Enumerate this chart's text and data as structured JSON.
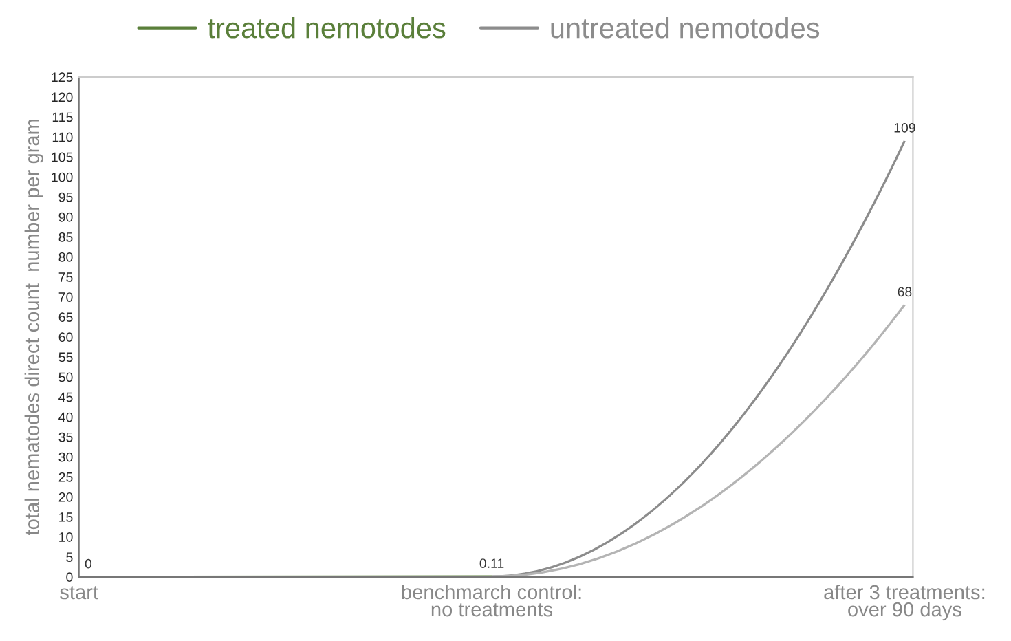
{
  "chart_data": {
    "type": "line",
    "ylabel": "total nematodes direct count  number per gram",
    "categories": [
      "start",
      "benchmarch control:\nno treatments",
      "after 3 treatments:\nover 90 days"
    ],
    "series": [
      {
        "name": "treated nemotodes",
        "color": "#5a7f3a",
        "values": [
          0,
          0.11,
          null
        ],
        "value_labels": [
          "0",
          null,
          null
        ]
      },
      {
        "name": "untreated nemotodes",
        "color": "#8c8c8c",
        "values": [
          null,
          0.11,
          109
        ],
        "value_labels": [
          null,
          "0.11",
          "109"
        ]
      },
      {
        "color": "#b4b4b4",
        "values": [
          null,
          0.11,
          68
        ],
        "value_labels": [
          null,
          null,
          "68"
        ]
      }
    ],
    "ylim": [
      0,
      125
    ],
    "yticks": [
      0,
      5,
      10,
      15,
      20,
      25,
      30,
      35,
      40,
      45,
      50,
      55,
      60,
      65,
      70,
      75,
      80,
      85,
      90,
      95,
      100,
      105,
      110,
      115,
      120,
      125
    ],
    "grid": false,
    "legend": "top left",
    "marker": "none",
    "line_style": "solid"
  }
}
